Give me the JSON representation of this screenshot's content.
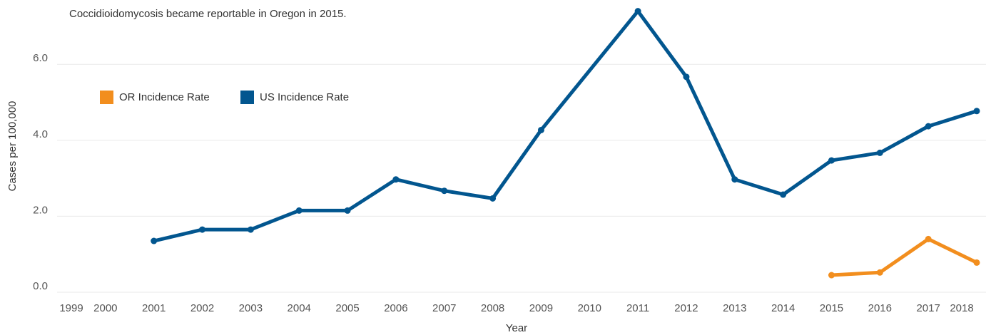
{
  "chart_data": {
    "type": "line",
    "annotation": "Coccidioidomycosis became reportable in Oregon in 2015.",
    "xlabel": "Year",
    "ylabel": "Cases per 100,000",
    "xlim": [
      1999,
      2018
    ],
    "xticks": [
      1999,
      2000,
      2001,
      2002,
      2003,
      2004,
      2005,
      2006,
      2007,
      2008,
      2009,
      2010,
      2011,
      2012,
      2013,
      2014,
      2015,
      2016,
      2017,
      2018
    ],
    "ylim": [
      0,
      7.6
    ],
    "yticks": [
      {
        "value": 0,
        "label": "0.0"
      },
      {
        "value": 2,
        "label": "2.0"
      },
      {
        "value": 4,
        "label": "4.0"
      },
      {
        "value": 6,
        "label": "6.0"
      }
    ],
    "grid": true,
    "series": [
      {
        "name": "OR Incidence Rate",
        "color": "#f28e1e",
        "x": [
          2015,
          2016,
          2017,
          2018
        ],
        "values": [
          0.45,
          0.52,
          1.4,
          0.78
        ]
      },
      {
        "name": "US Incidence Rate",
        "color": "#02568f",
        "x": [
          2001,
          2002,
          2003,
          2004,
          2005,
          2006,
          2007,
          2008,
          2009,
          2011,
          2012,
          2013,
          2014,
          2015,
          2016,
          2017,
          2018
        ],
        "values": [
          1.35,
          1.65,
          1.65,
          2.15,
          2.15,
          2.97,
          2.67,
          2.47,
          4.27,
          7.4,
          5.67,
          2.97,
          2.57,
          3.47,
          3.67,
          4.37,
          4.77
        ]
      }
    ]
  }
}
